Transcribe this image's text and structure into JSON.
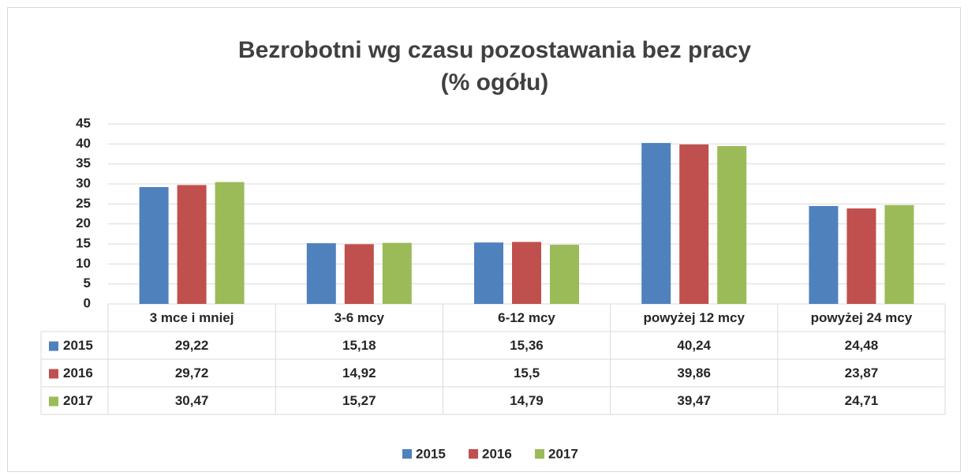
{
  "chart_data": {
    "type": "bar",
    "title": [
      "Bezrobotni wg czasu pozostawania bez pracy",
      "(%  ogółu)"
    ],
    "categories": [
      "3 mce i mniej",
      "3-6 mcy",
      "6-12 mcy",
      "powyżej 12 mcy",
      "powyżej 24 mcy"
    ],
    "series": [
      {
        "name": "2015",
        "color": "#4f81bd",
        "values": [
          29.22,
          15.18,
          15.36,
          40.24,
          24.48
        ],
        "value_labels": [
          "29,22",
          "15,18",
          "15,36",
          "40,24",
          "24,48"
        ]
      },
      {
        "name": "2016",
        "color": "#c0504d",
        "values": [
          29.72,
          14.92,
          15.5,
          39.86,
          23.87
        ],
        "value_labels": [
          "29,72",
          "14,92",
          "15,5",
          "39,86",
          "23,87"
        ]
      },
      {
        "name": "2017",
        "color": "#9bbb59",
        "values": [
          30.47,
          15.27,
          14.79,
          39.47,
          24.71
        ],
        "value_labels": [
          "30,47",
          "15,27",
          "14,79",
          "39,47",
          "24,71"
        ]
      }
    ],
    "ylim": [
      0,
      45
    ],
    "yticks": [
      0,
      5,
      10,
      15,
      20,
      25,
      30,
      35,
      40,
      45
    ],
    "grid": true,
    "legend": "bottom"
  }
}
